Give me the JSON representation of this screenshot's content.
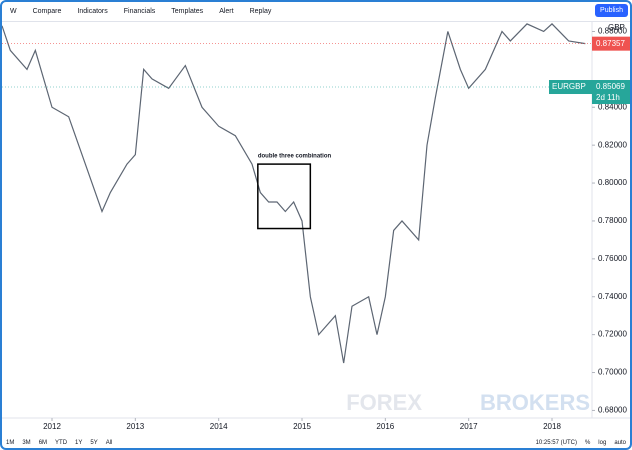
{
  "toolbar": {
    "interval": "W",
    "buttons": [
      "Compare",
      "Indicators",
      "Financials",
      "Templates",
      "Alert",
      "Replay"
    ],
    "publish": "Publish"
  },
  "chart_data": {
    "type": "line",
    "currency": "GBP",
    "color": "#5d6673",
    "x": [
      2011.4,
      2011.5,
      2011.7,
      2011.8,
      2012.0,
      2012.2,
      2012.4,
      2012.6,
      2012.7,
      2012.9,
      2013.0,
      2013.1,
      2013.2,
      2013.4,
      2013.6,
      2013.8,
      2013.9,
      2014.0,
      2014.2,
      2014.4,
      2014.5,
      2014.6,
      2014.7,
      2014.8,
      2014.9,
      2015.0,
      2015.1,
      2015.2,
      2015.4,
      2015.5,
      2015.6,
      2015.8,
      2015.9,
      2016.0,
      2016.1,
      2016.2,
      2016.4,
      2016.5,
      2016.6,
      2016.75,
      2016.9,
      2017.0,
      2017.2,
      2017.4,
      2017.5,
      2017.7,
      2017.9,
      2018.0,
      2018.2,
      2018.4
    ],
    "values": [
      0.883,
      0.87,
      0.86,
      0.87,
      0.84,
      0.835,
      0.81,
      0.785,
      0.795,
      0.81,
      0.815,
      0.86,
      0.855,
      0.85,
      0.862,
      0.84,
      0.835,
      0.83,
      0.825,
      0.81,
      0.795,
      0.79,
      0.79,
      0.785,
      0.79,
      0.78,
      0.74,
      0.72,
      0.73,
      0.705,
      0.735,
      0.74,
      0.72,
      0.74,
      0.775,
      0.78,
      0.77,
      0.82,
      0.845,
      0.88,
      0.86,
      0.85,
      0.86,
      0.88,
      0.875,
      0.884,
      0.88,
      0.884,
      0.875,
      0.8736
    ],
    "xlim": [
      2011.4,
      2018.48
    ],
    "xticks": [
      2012,
      2013,
      2014,
      2015,
      2016,
      2017,
      2018
    ],
    "ylim": [
      0.676,
      0.885
    ],
    "yticks": [
      {
        "value": 0.68,
        "label": "0.68000"
      },
      {
        "value": 0.7,
        "label": "0.70000"
      },
      {
        "value": 0.72,
        "label": "0.72000"
      },
      {
        "value": 0.74,
        "label": "0.74000"
      },
      {
        "value": 0.76,
        "label": "0.76000"
      },
      {
        "value": 0.78,
        "label": "0.78000"
      },
      {
        "value": 0.8,
        "label": "0.80000"
      },
      {
        "value": 0.82,
        "label": "0.82000"
      },
      {
        "value": 0.84,
        "label": "0.84000"
      },
      {
        "value": 0.88,
        "label": "0.88000"
      }
    ],
    "grid": false,
    "price_tags": [
      {
        "value": 0.87357,
        "label": "0.87357",
        "color": "#ef5350"
      },
      {
        "value": 0.85069,
        "label": "0.85069",
        "symbol": "EURGBP",
        "countdown": "2d 11h",
        "color": "#26a69a"
      }
    ],
    "box": {
      "label": "double three combination",
      "x": [
        2014.47,
        2015.1
      ],
      "y": [
        0.776,
        0.81
      ]
    }
  },
  "watermark": [
    "FOREX",
    "BROKERS"
  ],
  "bottom_bar": {
    "ranges": [
      "1M",
      "3M",
      "6M",
      "YTD",
      "1Y",
      "5Y",
      "All"
    ],
    "clock": "10:25:57 (UTC)",
    "options": [
      "%",
      "log",
      "auto"
    ]
  }
}
